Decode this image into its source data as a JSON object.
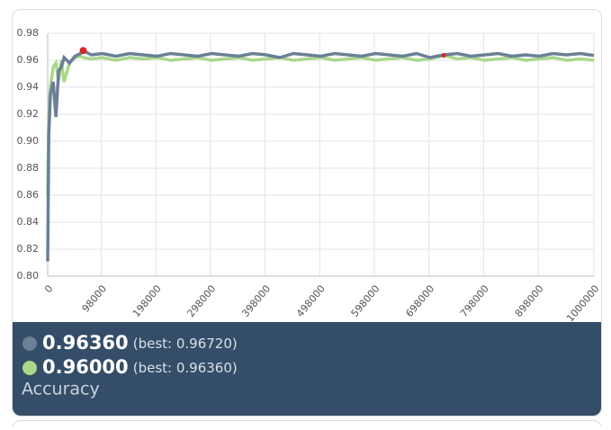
{
  "chart_data": {
    "type": "line",
    "metric_label": "Accuracy",
    "xlim": [
      0,
      1000000
    ],
    "xticks": [
      0,
      98000,
      198000,
      298000,
      398000,
      498000,
      598000,
      698000,
      798000,
      898000,
      1000000
    ],
    "ylim": [
      0.8,
      0.98
    ],
    "yticks": [
      {
        "value": 0.8,
        "label": "0.80"
      },
      0.82,
      0.84,
      0.86,
      0.88,
      {
        "value": 0.9,
        "label": "0.90"
      },
      0.92,
      0.94,
      0.96,
      0.98
    ],
    "grid": true,
    "best_color": "#d62728",
    "x": [
      0,
      2000,
      5000,
      10000,
      15000,
      20000,
      25000,
      30000,
      40000,
      50000,
      60000,
      65000,
      80000,
      100000,
      125000,
      150000,
      175000,
      200000,
      225000,
      250000,
      275000,
      300000,
      325000,
      350000,
      375000,
      400000,
      425000,
      450000,
      475000,
      500000,
      525000,
      550000,
      575000,
      600000,
      625000,
      650000,
      675000,
      700000,
      725000,
      750000,
      775000,
      800000,
      825000,
      850000,
      875000,
      900000,
      925000,
      950000,
      975000,
      1000000
    ],
    "series": [
      {
        "color": "#6b7f96",
        "current": "0.96360",
        "best": "(best: 0.96720)",
        "best_point": {
          "x": 65000,
          "y": 0.9672
        },
        "values": [
          0.811,
          0.905,
          0.935,
          0.944,
          0.918,
          0.952,
          0.955,
          0.962,
          0.958,
          0.963,
          0.965,
          0.9672,
          0.964,
          0.965,
          0.963,
          0.965,
          0.964,
          0.963,
          0.965,
          0.964,
          0.963,
          0.965,
          0.964,
          0.963,
          0.965,
          0.964,
          0.962,
          0.965,
          0.964,
          0.963,
          0.965,
          0.964,
          0.963,
          0.965,
          0.964,
          0.963,
          0.965,
          0.962,
          0.964,
          0.965,
          0.963,
          0.964,
          0.965,
          0.963,
          0.964,
          0.963,
          0.965,
          0.964,
          0.965,
          0.9636
        ]
      },
      {
        "color": "#a8d88a",
        "current": "0.96000",
        "best": "(best: 0.96360)",
        "best_point": {
          "x": 725000,
          "y": 0.9636
        },
        "values": [
          0.86,
          0.92,
          0.94,
          0.955,
          0.958,
          0.945,
          0.96,
          0.944,
          0.958,
          0.962,
          0.963,
          0.962,
          0.961,
          0.962,
          0.96,
          0.962,
          0.961,
          0.962,
          0.96,
          0.961,
          0.962,
          0.96,
          0.961,
          0.962,
          0.96,
          0.961,
          0.962,
          0.96,
          0.961,
          0.962,
          0.96,
          0.961,
          0.962,
          0.96,
          0.961,
          0.962,
          0.96,
          0.961,
          0.9636,
          0.961,
          0.962,
          0.96,
          0.961,
          0.962,
          0.96,
          0.961,
          0.962,
          0.96,
          0.961,
          0.96
        ]
      }
    ]
  }
}
